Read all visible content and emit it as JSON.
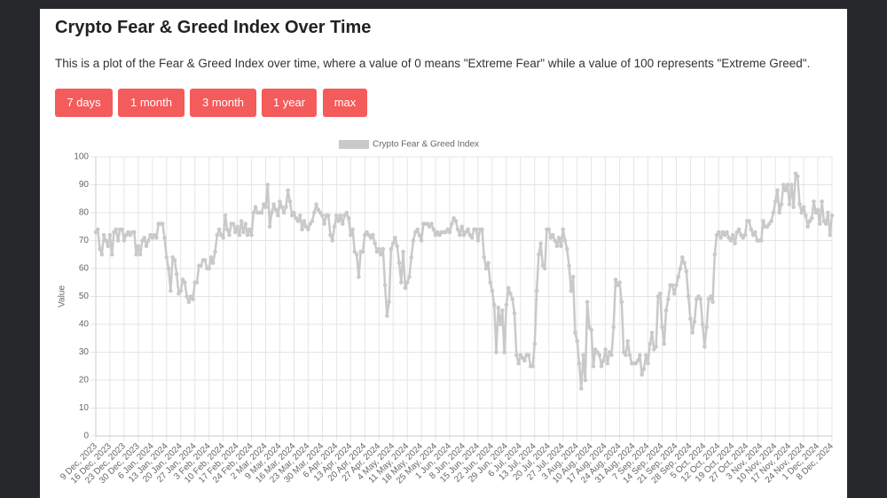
{
  "header": {
    "title": "Crypto Fear & Greed Index Over Time",
    "description": "This is a plot of the Fear & Greed Index over time, where a value of 0 means \"Extreme Fear\" while a value of 100 represents \"Extreme Greed\"."
  },
  "buttons": [
    "7 days",
    "1 month",
    "3 month",
    "1 year",
    "max"
  ],
  "chart_data": {
    "type": "line",
    "y_label": "Value",
    "ylim": [
      0,
      100
    ],
    "yticks": [
      0,
      10,
      20,
      30,
      40,
      50,
      60,
      70,
      80,
      90,
      100
    ],
    "grid": true,
    "legend": "top",
    "categories": [
      "9 Dec, 2023",
      null,
      null,
      null,
      null,
      null,
      null,
      "16 Dec, 2023",
      null,
      null,
      null,
      null,
      null,
      null,
      "23 Dec, 2023",
      null,
      null,
      null,
      null,
      null,
      null,
      "30 Dec, 2023",
      null,
      null,
      null,
      null,
      null,
      null,
      "6 Jan, 2024",
      null,
      null,
      null,
      null,
      null,
      null,
      "13 Jan, 2024",
      null,
      null,
      null,
      null,
      null,
      null,
      "20 Jan, 2024",
      null,
      null,
      null,
      null,
      null,
      null,
      "27 Jan, 2024",
      null,
      null,
      null,
      null,
      null,
      null,
      "3 Feb, 2024",
      null,
      null,
      null,
      null,
      null,
      null,
      "10 Feb, 2024",
      null,
      null,
      null,
      null,
      null,
      null,
      "17 Feb, 2024",
      null,
      null,
      null,
      null,
      null,
      null,
      "24 Feb, 2024",
      null,
      null,
      null,
      null,
      null,
      null,
      "2 Mar, 2024",
      null,
      null,
      null,
      null,
      null,
      null,
      "9 Mar, 2024",
      null,
      null,
      null,
      null,
      null,
      null,
      "16 Mar, 2024",
      null,
      null,
      null,
      null,
      null,
      null,
      "23 Mar, 2024",
      null,
      null,
      null,
      null,
      null,
      null,
      "30 Mar, 2024",
      null,
      null,
      null,
      null,
      null,
      null,
      "6 Apr, 2024",
      null,
      null,
      null,
      null,
      null,
      null,
      "13 Apr, 2024",
      null,
      null,
      null,
      null,
      null,
      null,
      "20 Apr, 2024",
      null,
      null,
      null,
      null,
      null,
      null,
      "27 Apr, 2024",
      null,
      null,
      null,
      null,
      null,
      null,
      "4 May, 2024",
      null,
      null,
      null,
      null,
      null,
      null,
      "11 May, 2024",
      null,
      null,
      null,
      null,
      null,
      null,
      "18 May, 2024",
      null,
      null,
      null,
      null,
      null,
      null,
      "25 May, 2024",
      null,
      null,
      null,
      null,
      null,
      null,
      "1 Jun, 2024",
      null,
      null,
      null,
      null,
      null,
      null,
      "8 Jun, 2024",
      null,
      null,
      null,
      null,
      null,
      null,
      "15 Jun, 2024",
      null,
      null,
      null,
      null,
      null,
      null,
      "22 Jun, 2024",
      null,
      null,
      null,
      null,
      null,
      null,
      "29 Jun, 2024",
      null,
      null,
      null,
      null,
      null,
      null,
      "6 Jul, 2024",
      null,
      null,
      null,
      null,
      null,
      null,
      "13 Jul, 2024",
      null,
      null,
      null,
      null,
      null,
      null,
      "20 Jul, 2024",
      null,
      null,
      null,
      null,
      null,
      null,
      "27 Jul, 2024",
      null,
      null,
      null,
      null,
      null,
      null,
      "3 Aug, 2024",
      null,
      null,
      null,
      null,
      null,
      null,
      "10 Aug, 2024",
      null,
      null,
      null,
      null,
      null,
      null,
      "17 Aug, 2024",
      null,
      null,
      null,
      null,
      null,
      null,
      "24 Aug, 2024",
      null,
      null,
      null,
      null,
      null,
      null,
      "31 Aug, 2024",
      null,
      null,
      null,
      null,
      null,
      null,
      "7 Sep, 2024",
      null,
      null,
      null,
      null,
      null,
      null,
      "14 Sep, 2024",
      null,
      null,
      null,
      null,
      null,
      null,
      "21 Sep, 2024",
      null,
      null,
      null,
      null,
      null,
      null,
      "28 Sep, 2024",
      null,
      null,
      null,
      null,
      null,
      null,
      "5 Oct, 2024",
      null,
      null,
      null,
      null,
      null,
      null,
      "12 Oct, 2024",
      null,
      null,
      null,
      null,
      null,
      null,
      "19 Oct, 2024",
      null,
      null,
      null,
      null,
      null,
      null,
      "27 Oct, 2024",
      null,
      null,
      null,
      null,
      null,
      null,
      "3 Nov, 2024",
      null,
      null,
      null,
      null,
      null,
      null,
      "10 Nov, 2024",
      null,
      null,
      null,
      null,
      null,
      null,
      "17 Nov, 2024",
      null,
      null,
      null,
      null,
      null,
      null,
      "24 Nov, 2024",
      null,
      null,
      null,
      null,
      null,
      null,
      "1 Dec, 2024",
      null,
      null,
      null,
      null,
      null,
      null,
      "8 Dec, 2024"
    ],
    "series": [
      {
        "name": "Crypto Fear & Greed Index",
        "color": "#c9c9c9",
        "values": [
          73,
          74,
          67,
          65,
          72,
          70,
          68,
          72,
          65,
          73,
          74,
          70,
          74,
          74,
          70,
          72,
          73,
          72,
          73,
          73,
          65,
          68,
          65,
          70,
          71,
          68,
          70,
          72,
          71,
          72,
          71,
          76,
          76,
          76,
          71,
          64,
          60,
          52,
          64,
          63,
          58,
          51,
          52,
          56,
          55,
          50,
          48,
          50,
          49,
          55,
          55,
          61,
          61,
          63,
          63,
          60,
          60,
          64,
          62,
          66,
          72,
          74,
          72,
          71,
          79,
          74,
          72,
          76,
          76,
          73,
          75,
          72,
          77,
          73,
          76,
          72,
          74,
          72,
          80,
          82,
          80,
          80,
          80,
          83,
          82,
          90,
          75,
          80,
          83,
          81,
          79,
          84,
          82,
          80,
          82,
          88,
          84,
          79,
          80,
          78,
          77,
          79,
          74,
          77,
          75,
          74,
          76,
          77,
          80,
          83,
          81,
          80,
          79,
          76,
          79,
          79,
          72,
          70,
          75,
          79,
          77,
          79,
          76,
          79,
          80,
          78,
          72,
          74,
          66,
          65,
          57,
          66,
          66,
          72,
          73,
          72,
          71,
          72,
          69,
          66,
          67,
          65,
          67,
          54,
          43,
          48,
          67,
          69,
          71,
          68,
          62,
          55,
          66,
          53,
          55,
          57,
          64,
          70,
          73,
          74,
          72,
          70,
          76,
          76,
          76,
          75,
          76,
          74,
          72,
          73,
          72,
          73,
          73,
          73,
          74,
          73,
          76,
          78,
          77,
          74,
          72,
          75,
          72,
          73,
          74,
          72,
          71,
          74,
          74,
          70,
          74,
          74,
          64,
          60,
          62,
          55,
          52,
          47,
          30,
          46,
          40,
          45,
          30,
          47,
          53,
          51,
          49,
          44,
          29,
          26,
          29,
          28,
          27,
          29,
          29,
          25,
          25,
          33,
          52,
          65,
          69,
          61,
          60,
          74,
          74,
          71,
          72,
          70,
          68,
          71,
          68,
          74,
          70,
          67,
          61,
          52,
          57,
          37,
          34,
          26,
          17,
          29,
          20,
          48,
          39,
          38,
          25,
          31,
          30,
          29,
          25,
          27,
          31,
          26,
          30,
          29,
          39,
          56,
          54,
          55,
          48,
          30,
          29,
          34,
          29,
          26,
          26,
          26,
          27,
          29,
          22,
          24,
          29,
          26,
          33,
          37,
          31,
          32,
          50,
          51,
          39,
          33,
          45,
          49,
          54,
          54,
          51,
          54,
          57,
          60,
          64,
          62,
          59,
          50,
          42,
          37,
          41,
          49,
          50,
          49,
          40,
          32,
          39,
          49,
          50,
          48,
          65,
          72,
          73,
          71,
          73,
          72,
          73,
          71,
          70,
          72,
          69,
          73,
          74,
          72,
          71,
          72,
          77,
          77,
          74,
          72,
          73,
          70,
          70,
          70,
          77,
          75,
          75,
          76,
          77,
          80,
          84,
          88,
          80,
          83,
          90,
          88,
          90,
          83,
          90,
          82,
          94,
          93,
          83,
          80,
          82,
          79,
          75,
          77,
          78,
          84,
          80,
          81,
          76,
          84,
          77,
          76,
          80,
          72,
          79
        ]
      }
    ]
  }
}
